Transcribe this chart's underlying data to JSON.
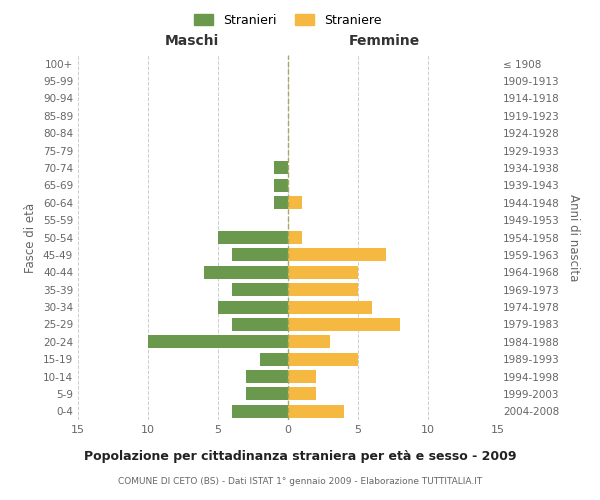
{
  "age_groups": [
    "0-4",
    "5-9",
    "10-14",
    "15-19",
    "20-24",
    "25-29",
    "30-34",
    "35-39",
    "40-44",
    "45-49",
    "50-54",
    "55-59",
    "60-64",
    "65-69",
    "70-74",
    "75-79",
    "80-84",
    "85-89",
    "90-94",
    "95-99",
    "100+"
  ],
  "birth_years": [
    "2004-2008",
    "1999-2003",
    "1994-1998",
    "1989-1993",
    "1984-1988",
    "1979-1983",
    "1974-1978",
    "1969-1973",
    "1964-1968",
    "1959-1963",
    "1954-1958",
    "1949-1953",
    "1944-1948",
    "1939-1943",
    "1934-1938",
    "1929-1933",
    "1924-1928",
    "1919-1923",
    "1914-1918",
    "1909-1913",
    "≤ 1908"
  ],
  "maschi": [
    4,
    3,
    3,
    2,
    10,
    4,
    5,
    4,
    6,
    4,
    5,
    0,
    1,
    1,
    1,
    0,
    0,
    0,
    0,
    0,
    0
  ],
  "femmine": [
    4,
    2,
    2,
    5,
    3,
    8,
    6,
    5,
    5,
    7,
    1,
    0,
    1,
    0,
    0,
    0,
    0,
    0,
    0,
    0,
    0
  ],
  "maschi_color": "#6a994e",
  "femmine_color": "#f5b942",
  "background_color": "#ffffff",
  "grid_color": "#cccccc",
  "title": "Popolazione per cittadinanza straniera per età e sesso - 2009",
  "subtitle": "COMUNE DI CETO (BS) - Dati ISTAT 1° gennaio 2009 - Elaborazione TUTTITALIA.IT",
  "ylabel_left": "Fasce di età",
  "ylabel_right": "Anni di nascita",
  "header_left": "Maschi",
  "header_right": "Femmine",
  "legend_maschi": "Stranieri",
  "legend_femmine": "Straniere",
  "xlim": 15,
  "center_line_color": "#aaa860"
}
